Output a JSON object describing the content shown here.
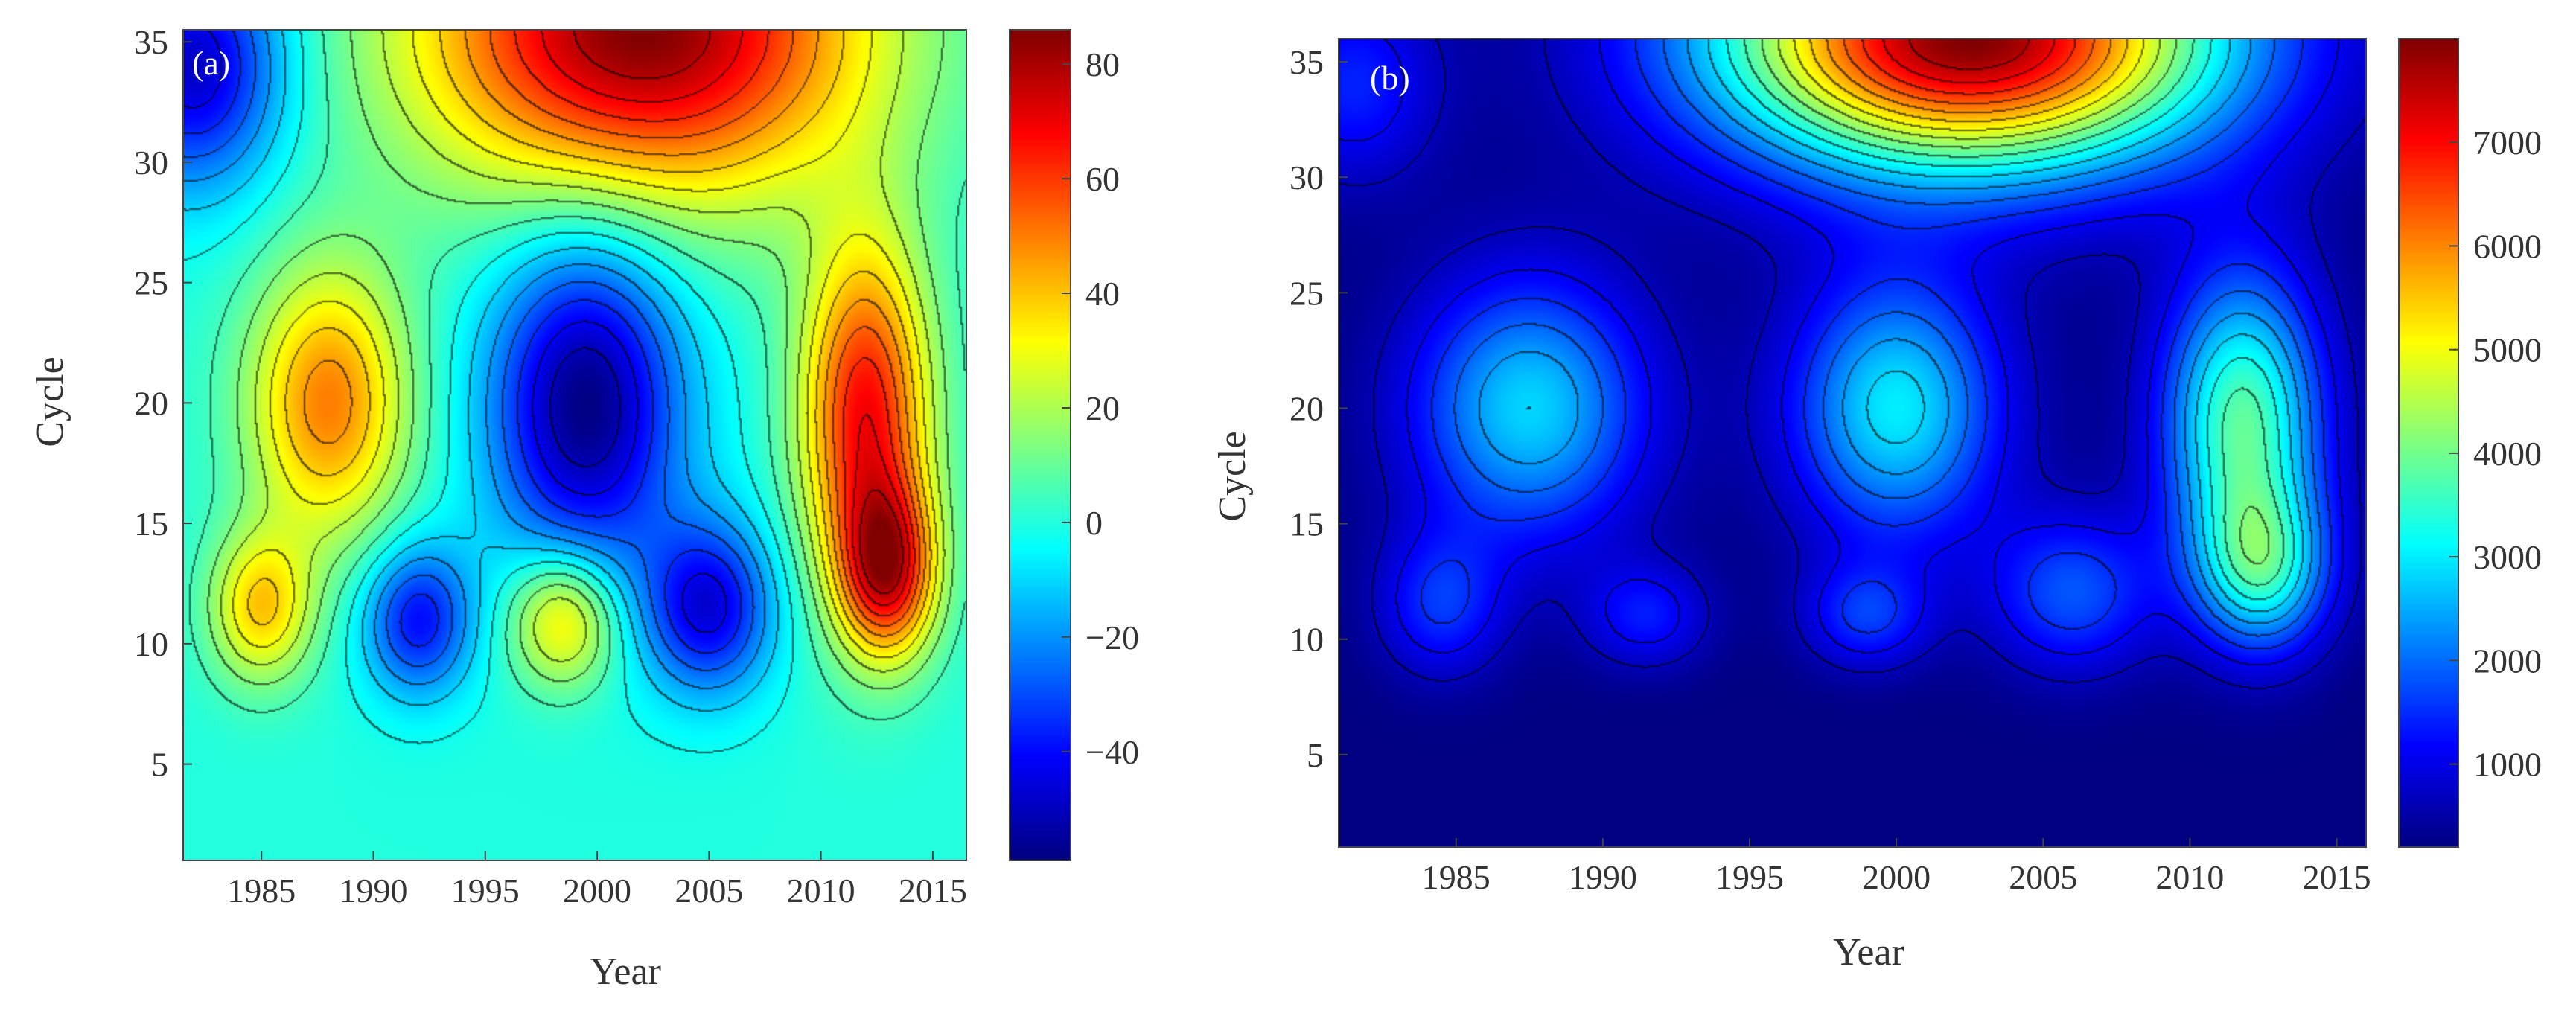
{
  "chart_data": [
    {
      "type": "heatmap",
      "panel_label": "(a)",
      "title": "",
      "xlabel": "Year",
      "ylabel": "Cycle",
      "xlim": [
        1981.5,
        2016.5
      ],
      "ylim": [
        1,
        35.5
      ],
      "x_ticks": [
        1985,
        1990,
        1995,
        2000,
        2005,
        2010,
        2015
      ],
      "y_ticks": [
        5,
        10,
        15,
        20,
        25,
        30,
        35
      ],
      "colorbar": {
        "min": -59,
        "max": 86,
        "ticks": [
          -40,
          -20,
          0,
          20,
          40,
          60,
          80
        ],
        "tick_labels": [
          "−40",
          "−20",
          "0",
          "20",
          "40",
          "60",
          "80"
        ]
      },
      "colormap": "jet",
      "features": [
        {
          "year": 1988,
          "cycle": 20,
          "value": 50,
          "sx": 2.5,
          "sy": 4.0
        },
        {
          "year": 1985,
          "cycle": 11.5,
          "value": 38,
          "sx": 1.6,
          "sy": 2.2
        },
        {
          "year": 1998.5,
          "cycle": 11,
          "value": 40,
          "sx": 1.7,
          "sy": 2.0
        },
        {
          "year": 1992,
          "cycle": 11,
          "value": -40,
          "sx": 1.7,
          "sy": 2.2
        },
        {
          "year": 1999.5,
          "cycle": 20,
          "value": -59,
          "sx": 3.0,
          "sy": 5.0
        },
        {
          "year": 2005,
          "cycle": 11.5,
          "value": -45,
          "sx": 2.0,
          "sy": 2.5
        },
        {
          "year": 2012,
          "cycle": 19.5,
          "value": 68,
          "sx": 2.0,
          "sy": 5.0
        },
        {
          "year": 2013,
          "cycle": 13,
          "value": 62,
          "sx": 1.5,
          "sy": 2.5
        },
        {
          "year": 2002,
          "cycle": 35.5,
          "value": 86,
          "sx": 7.0,
          "sy": 5.0
        },
        {
          "year": 1982,
          "cycle": 34,
          "value": -50,
          "sx": 2.8,
          "sy": 3.5
        }
      ]
    },
    {
      "type": "heatmap",
      "panel_label": "(b)",
      "title": "",
      "xlabel": "Year",
      "ylabel": "Cycle",
      "xlim": [
        1981,
        2016
      ],
      "ylim": [
        1,
        36
      ],
      "x_ticks": [
        1985,
        1990,
        1995,
        2000,
        2005,
        2010,
        2015
      ],
      "y_ticks": [
        5,
        10,
        15,
        20,
        25,
        30,
        35
      ],
      "colorbar": {
        "min": 200,
        "max": 8000,
        "ticks": [
          1000,
          2000,
          3000,
          4000,
          5000,
          6000,
          7000
        ],
        "tick_labels": [
          "1000",
          "2000",
          "3000",
          "4000",
          "5000",
          "6000",
          "7000"
        ]
      },
      "colormap": "jet",
      "features": [
        {
          "year": 1987.5,
          "cycle": 20,
          "value": 2800,
          "sx": 2.8,
          "sy": 4.0
        },
        {
          "year": 1984.5,
          "cycle": 11.5,
          "value": 1500,
          "sx": 1.5,
          "sy": 2.2
        },
        {
          "year": 1991.5,
          "cycle": 11,
          "value": 1300,
          "sx": 1.5,
          "sy": 1.6
        },
        {
          "year": 1999,
          "cycle": 11,
          "value": 1500,
          "sx": 1.5,
          "sy": 1.6
        },
        {
          "year": 2000,
          "cycle": 20,
          "value": 3000,
          "sx": 2.5,
          "sy": 4.0
        },
        {
          "year": 2006,
          "cycle": 12,
          "value": 1800,
          "sx": 2.0,
          "sy": 2.4
        },
        {
          "year": 2011.8,
          "cycle": 19.5,
          "value": 3800,
          "sx": 1.9,
          "sy": 4.5
        },
        {
          "year": 2012.5,
          "cycle": 13,
          "value": 2800,
          "sx": 1.6,
          "sy": 2.5
        },
        {
          "year": 2002.5,
          "cycle": 36,
          "value": 8000,
          "sx": 6.0,
          "sy": 4.0
        },
        {
          "year": 1981.5,
          "cycle": 34,
          "value": 1400,
          "sx": 2.0,
          "sy": 3.0
        }
      ]
    }
  ]
}
